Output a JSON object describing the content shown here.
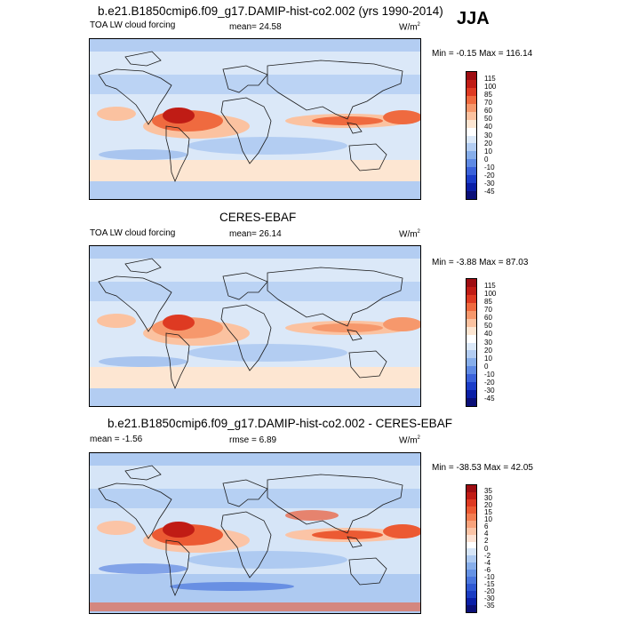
{
  "season": "JJA",
  "panels": [
    {
      "id": "model",
      "title": "b.e21.B1850cmip6.f09_g17.DAMIP-hist-co2.002 (yrs 1990-2014)",
      "left_label": "TOA LW cloud forcing",
      "stat_label": "mean=  24.58",
      "units": "W/m",
      "units_sup": "2",
      "minmax": "Min =  -0.15 Max = 116.14",
      "levels": [
        "115",
        "100",
        "85",
        "70",
        "60",
        "50",
        "40",
        "30",
        "20",
        "10",
        "0",
        "-10",
        "-20",
        "-30",
        "-45"
      ],
      "colors": [
        "#9e0d12",
        "#c01c15",
        "#de3a22",
        "#ef6a3f",
        "#f6986c",
        "#fbc2a0",
        "#fde6d2",
        "#ffffff",
        "#dbe8f8",
        "#b3cdf2",
        "#87aeea",
        "#5f8ae3",
        "#3b62d9",
        "#1b3dc8",
        "#0a1fa6",
        "#0a0f78"
      ]
    },
    {
      "id": "obs",
      "title": "CERES-EBAF",
      "left_label": "TOA LW cloud forcing",
      "stat_label": "mean=  26.14",
      "units": "W/m",
      "units_sup": "2",
      "minmax": "Min =  -3.88 Max =  87.03",
      "levels": [
        "115",
        "100",
        "85",
        "70",
        "60",
        "50",
        "40",
        "30",
        "20",
        "10",
        "0",
        "-10",
        "-20",
        "-30",
        "-45"
      ],
      "colors": [
        "#9e0d12",
        "#c01c15",
        "#de3a22",
        "#ef6a3f",
        "#f6986c",
        "#fbc2a0",
        "#fde6d2",
        "#ffffff",
        "#dbe8f8",
        "#b3cdf2",
        "#87aeea",
        "#5f8ae3",
        "#3b62d9",
        "#1b3dc8",
        "#0a1fa6",
        "#0a0f78"
      ]
    },
    {
      "id": "diff",
      "title": "b.e21.B1850cmip6.f09_g17.DAMIP-hist-co2.002 - CERES-EBAF",
      "left_label": "mean =  -1.56",
      "stat_label": "rmse =   6.89",
      "units": "W/m",
      "units_sup": "2",
      "minmax": "Min = -38.53 Max =  42.05",
      "levels": [
        "35",
        "30",
        "20",
        "15",
        "10",
        "6",
        "4",
        "2",
        "0",
        "-2",
        "-4",
        "-6",
        "-10",
        "-15",
        "-20",
        "-30",
        "-35"
      ],
      "colors": [
        "#9e0d12",
        "#c01c15",
        "#de3a22",
        "#ec5a33",
        "#f37e52",
        "#f8a37c",
        "#fbc4a6",
        "#fde2d3",
        "#ffffff",
        "#d6e5f7",
        "#aecaf1",
        "#87aeea",
        "#6592e4",
        "#4a76dd",
        "#2f58d2",
        "#1a3cc2",
        "#0a1fa6",
        "#0a0f78"
      ]
    }
  ]
}
